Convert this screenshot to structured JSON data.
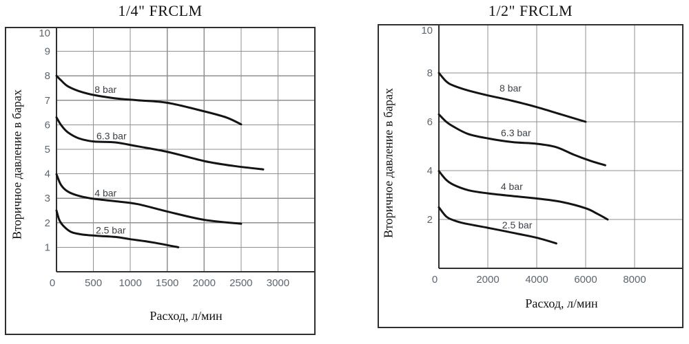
{
  "colors": {
    "background": "#ffffff",
    "curve": "#141414",
    "grid_line": "#8f8f8f",
    "axis_line": "#2f2f2f",
    "tick_text": "#5b6670",
    "series_label_text": "#3a4148",
    "title_text": "#111111"
  },
  "chart_data": [
    {
      "type": "line",
      "title": "1/4\" FRCLM",
      "xlabel": "Расход, л/мин",
      "ylabel": "Вторичное давление в барах",
      "xlim": [
        0,
        3500
      ],
      "ylim": [
        0,
        10
      ],
      "x_grid_step": 500,
      "y_grid_step": 1,
      "x_ticks": [
        0,
        500,
        1000,
        1500,
        2000,
        2500,
        3000
      ],
      "y_ticks": [
        1,
        2,
        3,
        4,
        5,
        6,
        7,
        8,
        9,
        10
      ],
      "grid": true,
      "legend": "inline-curve-labels",
      "series": [
        {
          "name": "8 bar",
          "label_at": [
            665,
            7.45
          ],
          "points": [
            [
              0,
              8
            ],
            [
              60,
              7.82
            ],
            [
              150,
              7.58
            ],
            [
              300,
              7.38
            ],
            [
              500,
              7.22
            ],
            [
              800,
              7.08
            ],
            [
              1100,
              7.0
            ],
            [
              1500,
              6.9
            ],
            [
              2000,
              6.55
            ],
            [
              2300,
              6.3
            ],
            [
              2500,
              6.02
            ]
          ]
        },
        {
          "name": "6.3 bar",
          "label_at": [
            745,
            5.55
          ],
          "points": [
            [
              0,
              6.3
            ],
            [
              60,
              6.0
            ],
            [
              150,
              5.7
            ],
            [
              300,
              5.45
            ],
            [
              500,
              5.32
            ],
            [
              800,
              5.28
            ],
            [
              1100,
              5.12
            ],
            [
              1500,
              4.9
            ],
            [
              2000,
              4.52
            ],
            [
              2400,
              4.32
            ],
            [
              2800,
              4.18
            ]
          ]
        },
        {
          "name": "4 bar",
          "label_at": [
            665,
            3.22
          ],
          "points": [
            [
              0,
              3.98
            ],
            [
              60,
              3.55
            ],
            [
              150,
              3.28
            ],
            [
              300,
              3.1
            ],
            [
              500,
              2.98
            ],
            [
              800,
              2.88
            ],
            [
              1100,
              2.76
            ],
            [
              1500,
              2.46
            ],
            [
              2000,
              2.12
            ],
            [
              2500,
              1.96
            ]
          ]
        },
        {
          "name": "2.5 bar",
          "label_at": [
            735,
            1.7
          ],
          "points": [
            [
              0,
              2.5
            ],
            [
              40,
              2.1
            ],
            [
              100,
              1.85
            ],
            [
              200,
              1.62
            ],
            [
              350,
              1.52
            ],
            [
              550,
              1.47
            ],
            [
              800,
              1.42
            ],
            [
              1000,
              1.33
            ],
            [
              1300,
              1.2
            ],
            [
              1650,
              1.0
            ]
          ]
        }
      ]
    },
    {
      "type": "line",
      "title": "1/2\" FRCLM",
      "xlabel": "Расход, л/мин",
      "ylabel": "Вторичное давление в барах",
      "xlim": [
        0,
        10000
      ],
      "ylim": [
        0,
        10
      ],
      "x_grid_step": 2000,
      "y_grid_step": 2,
      "x_ticks": [
        0,
        2000,
        4000,
        6000,
        8000
      ],
      "y_ticks": [
        2,
        4,
        6,
        8,
        10
      ],
      "grid": true,
      "legend": "inline-curve-labels",
      "series": [
        {
          "name": "8 bar",
          "label_at": [
            2930,
            7.38
          ],
          "points": [
            [
              0,
              8
            ],
            [
              300,
              7.65
            ],
            [
              600,
              7.48
            ],
            [
              1200,
              7.28
            ],
            [
              2000,
              7.08
            ],
            [
              3000,
              6.86
            ],
            [
              4000,
              6.6
            ],
            [
              5000,
              6.3
            ],
            [
              6000,
              6.0
            ]
          ]
        },
        {
          "name": "6.3 bar",
          "label_at": [
            3150,
            5.55
          ],
          "points": [
            [
              0,
              6.3
            ],
            [
              300,
              6.0
            ],
            [
              600,
              5.8
            ],
            [
              1200,
              5.5
            ],
            [
              2000,
              5.32
            ],
            [
              3000,
              5.17
            ],
            [
              4000,
              5.1
            ],
            [
              4800,
              4.96
            ],
            [
              5500,
              4.66
            ],
            [
              6200,
              4.4
            ],
            [
              6800,
              4.22
            ]
          ]
        },
        {
          "name": "4 bar",
          "label_at": [
            2980,
            3.35
          ],
          "points": [
            [
              0,
              3.98
            ],
            [
              300,
              3.62
            ],
            [
              600,
              3.42
            ],
            [
              1200,
              3.2
            ],
            [
              2000,
              3.07
            ],
            [
              3000,
              2.96
            ],
            [
              4000,
              2.86
            ],
            [
              5000,
              2.72
            ],
            [
              6000,
              2.46
            ],
            [
              6500,
              2.22
            ],
            [
              6900,
              2.0
            ]
          ]
        },
        {
          "name": "2.5 bar",
          "label_at": [
            3200,
            1.78
          ],
          "points": [
            [
              0,
              2.5
            ],
            [
              300,
              2.12
            ],
            [
              600,
              1.97
            ],
            [
              1000,
              1.85
            ],
            [
              2000,
              1.66
            ],
            [
              3000,
              1.46
            ],
            [
              4000,
              1.25
            ],
            [
              4800,
              1.02
            ]
          ]
        }
      ]
    }
  ]
}
